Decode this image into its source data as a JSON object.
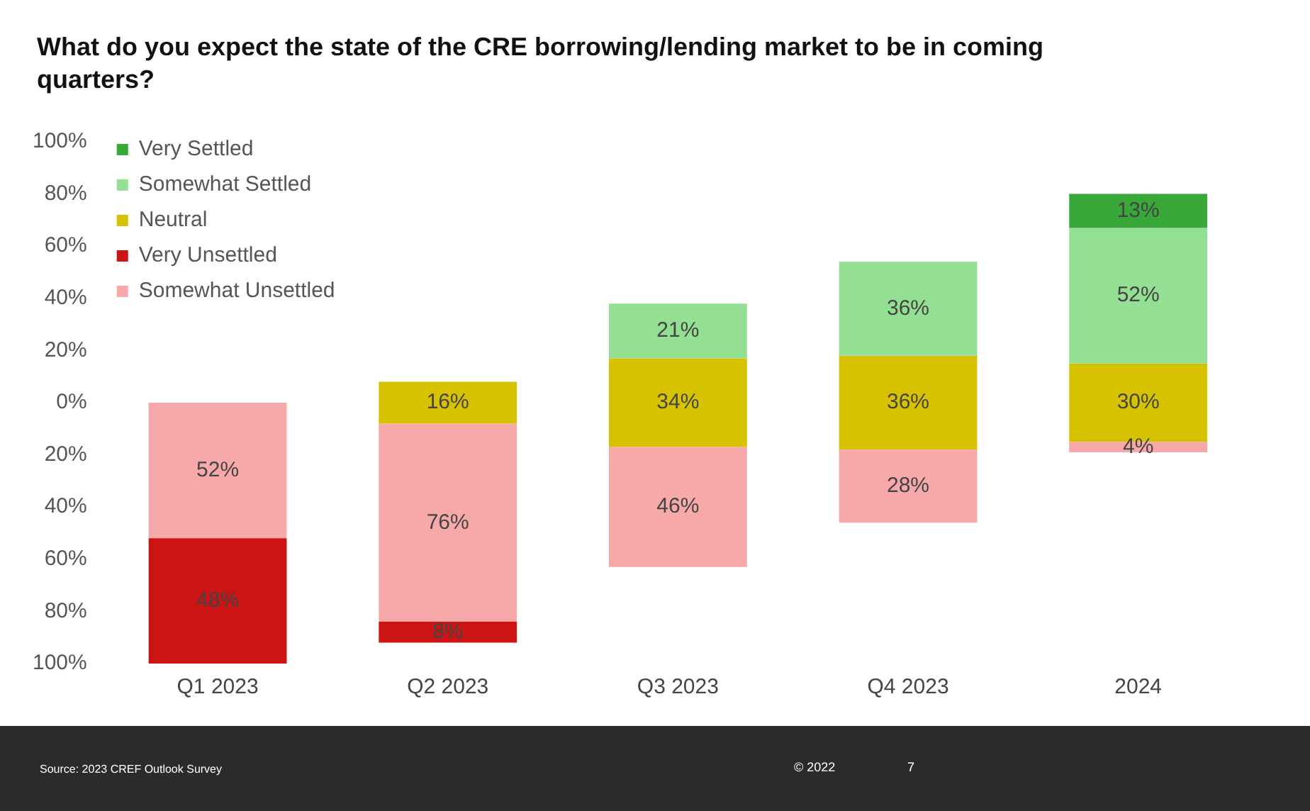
{
  "chart_data": {
    "type": "bar",
    "title": "What do you expect the state of the CRE borrowing/lending market to be in coming quarters?",
    "categories": [
      "Q1 2023",
      "Q2 2023",
      "Q3 2023",
      "Q4 2023",
      "2024"
    ],
    "series": [
      {
        "name": "Very Settled",
        "color": "#38a838",
        "values": [
          null,
          null,
          null,
          null,
          13
        ],
        "base": [
          null,
          null,
          null,
          null,
          67
        ],
        "value_labels": [
          null,
          null,
          null,
          null,
          "13%"
        ]
      },
      {
        "name": "Somewhat Settled",
        "color": "#93df93",
        "values": [
          null,
          null,
          21,
          36,
          52
        ],
        "base": [
          null,
          null,
          17,
          18,
          15
        ],
        "value_labels": [
          null,
          null,
          "21%",
          "36%",
          "52%"
        ]
      },
      {
        "name": "Neutral",
        "color": "#d6c200",
        "values": [
          null,
          16,
          34,
          36,
          30
        ],
        "base": [
          null,
          -8,
          -17,
          -18,
          -15
        ],
        "value_labels": [
          null,
          "16%",
          "34%",
          "36%",
          "30%"
        ]
      },
      {
        "name": "Very Unsettled",
        "color": "#cc1414",
        "values": [
          48,
          8,
          null,
          null,
          null
        ],
        "base": [
          -100,
          -92,
          null,
          null,
          null
        ],
        "value_labels": [
          "48%",
          "8%",
          null,
          null,
          null
        ]
      },
      {
        "name": "Somewhat Unsettled",
        "color": "#f7a8a8",
        "values": [
          52,
          76,
          46,
          28,
          4
        ],
        "base": [
          -52,
          -84,
          -63,
          -46,
          -19
        ],
        "value_labels": [
          "52%",
          "76%",
          "46%",
          "28%",
          "4%"
        ]
      }
    ],
    "ylim": [
      -100,
      100
    ],
    "yticks": [
      {
        "value": -100,
        "label": "100%"
      },
      {
        "value": -80,
        "label": "80%"
      },
      {
        "value": -60,
        "label": "60%"
      },
      {
        "value": -40,
        "label": "40%"
      },
      {
        "value": -20,
        "label": "20%"
      },
      {
        "value": 0,
        "label": "0%"
      },
      {
        "value": 20,
        "label": "20%"
      },
      {
        "value": 40,
        "label": "40%"
      },
      {
        "value": 60,
        "label": "60%"
      },
      {
        "value": 80,
        "label": "80%"
      },
      {
        "value": 100,
        "label": "100%"
      }
    ],
    "grid": false,
    "legend": "top left",
    "annotations": [
      "Source: 2023 CREF Outlook Survey",
      "© 2022",
      "7"
    ]
  }
}
